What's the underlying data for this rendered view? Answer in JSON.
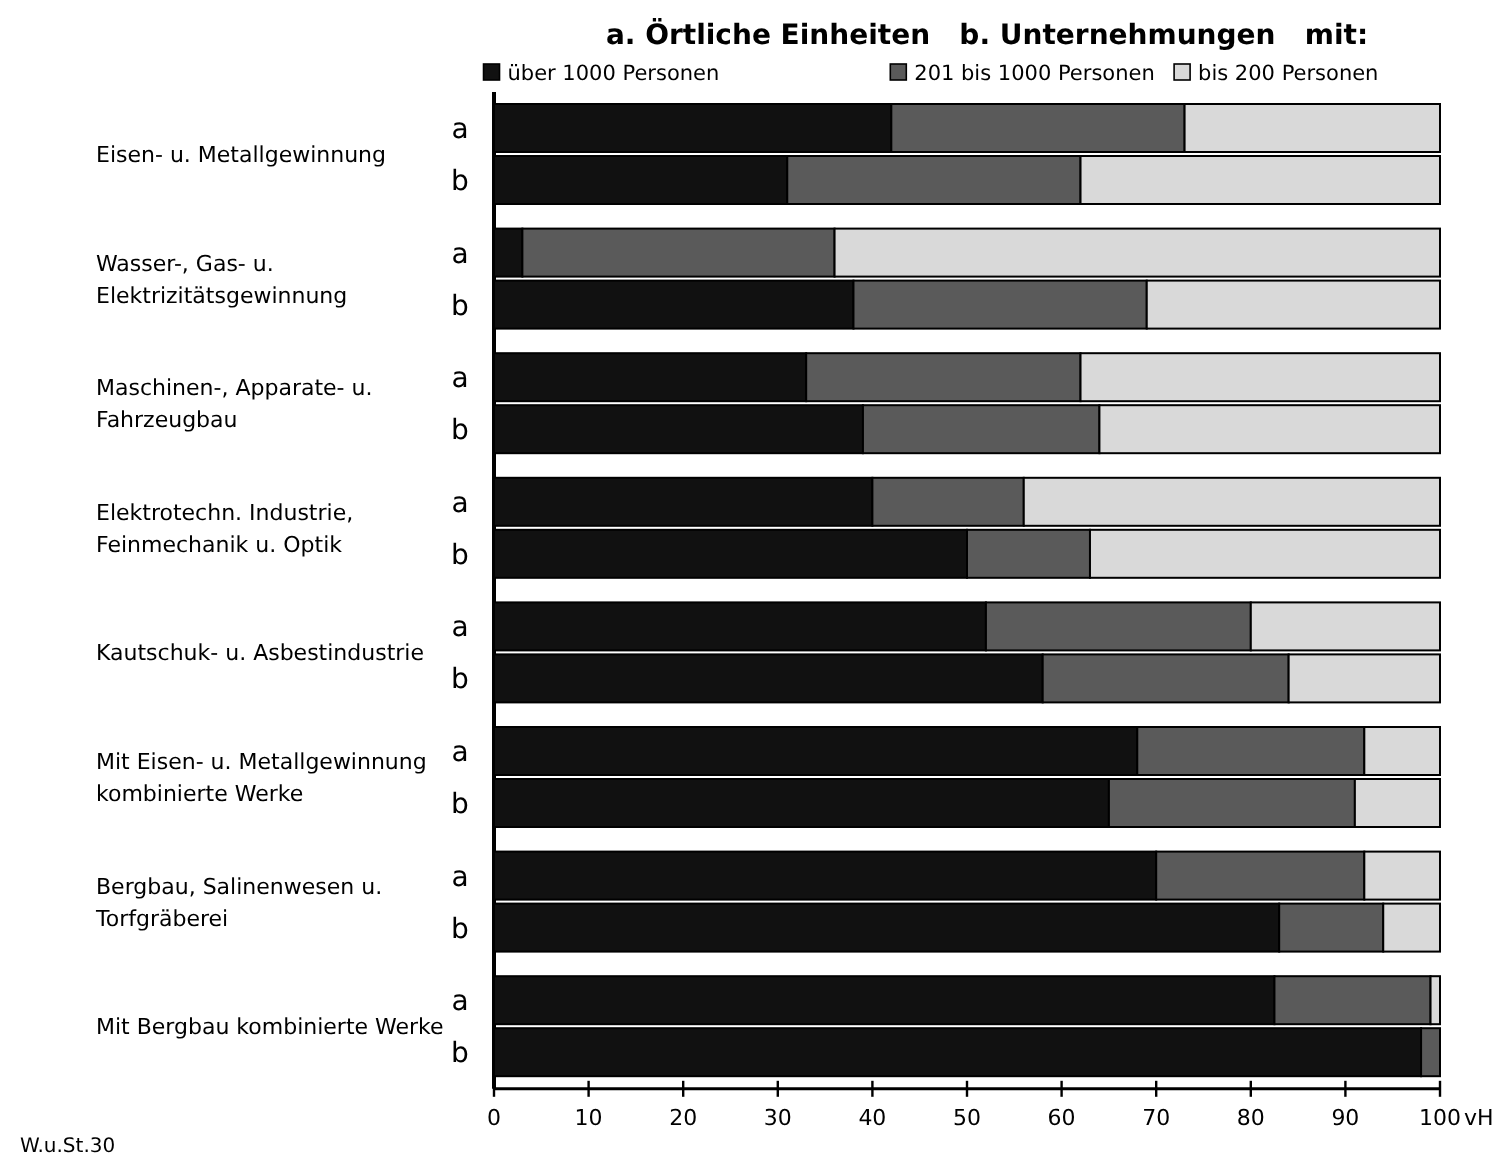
{
  "chart_data": {
    "type": "bar",
    "orientation": "horizontal",
    "stacked": true,
    "title": "a. Örtliche Einheiten   b. Unternehmungen   mit:",
    "xlabel": "vH",
    "categories": [
      "a",
      "b",
      "a",
      "b",
      "a",
      "b",
      "a",
      "b",
      "a",
      "b",
      "a",
      "b",
      "a",
      "b",
      "a",
      "b"
    ],
    "series": [
      {
        "name": "über 1000 Personen",
        "color": "#111111",
        "values": [
          42,
          31,
          3,
          38,
          33,
          39,
          40,
          50,
          52,
          58,
          68,
          65,
          70,
          83,
          82.5,
          98
        ]
      },
      {
        "name": "201 bis 1000 Personen",
        "color": "#5a5a5a",
        "values": [
          31,
          31,
          33,
          31,
          29,
          25,
          16,
          13,
          28,
          26,
          24,
          26,
          22,
          11,
          16.5,
          2
        ]
      },
      {
        "name": "bis 200 Personen",
        "color": "#d9d9d9",
        "values": [
          27,
          38,
          64,
          31,
          38,
          36,
          44,
          37,
          20,
          16,
          8,
          9,
          8,
          6,
          1,
          0
        ]
      }
    ],
    "xlim": [
      0,
      100
    ],
    "xticks": [
      0,
      10,
      20,
      30,
      40,
      50,
      60,
      70,
      80,
      90,
      100
    ],
    "legend": "top",
    "annotations": [
      "Eisen- u. Metallgewinnung",
      "Wasser-, Gas- u.\nElektrizitätsgewinnung",
      "Maschinen-, Apparate- u.\nFahrzeugbau",
      "Elektrotechn. Industrie,\nFeinmechanik u. Optik",
      "Kautschuk- u. Asbestindustrie",
      "Mit Eisen- u. Metallgewinnung\nkombinierte Werke",
      "Bergbau, Salinenwesen u.\nTorfgräberei",
      "Mit Bergbau kombinierte Werke",
      "W.u.St.30"
    ]
  }
}
